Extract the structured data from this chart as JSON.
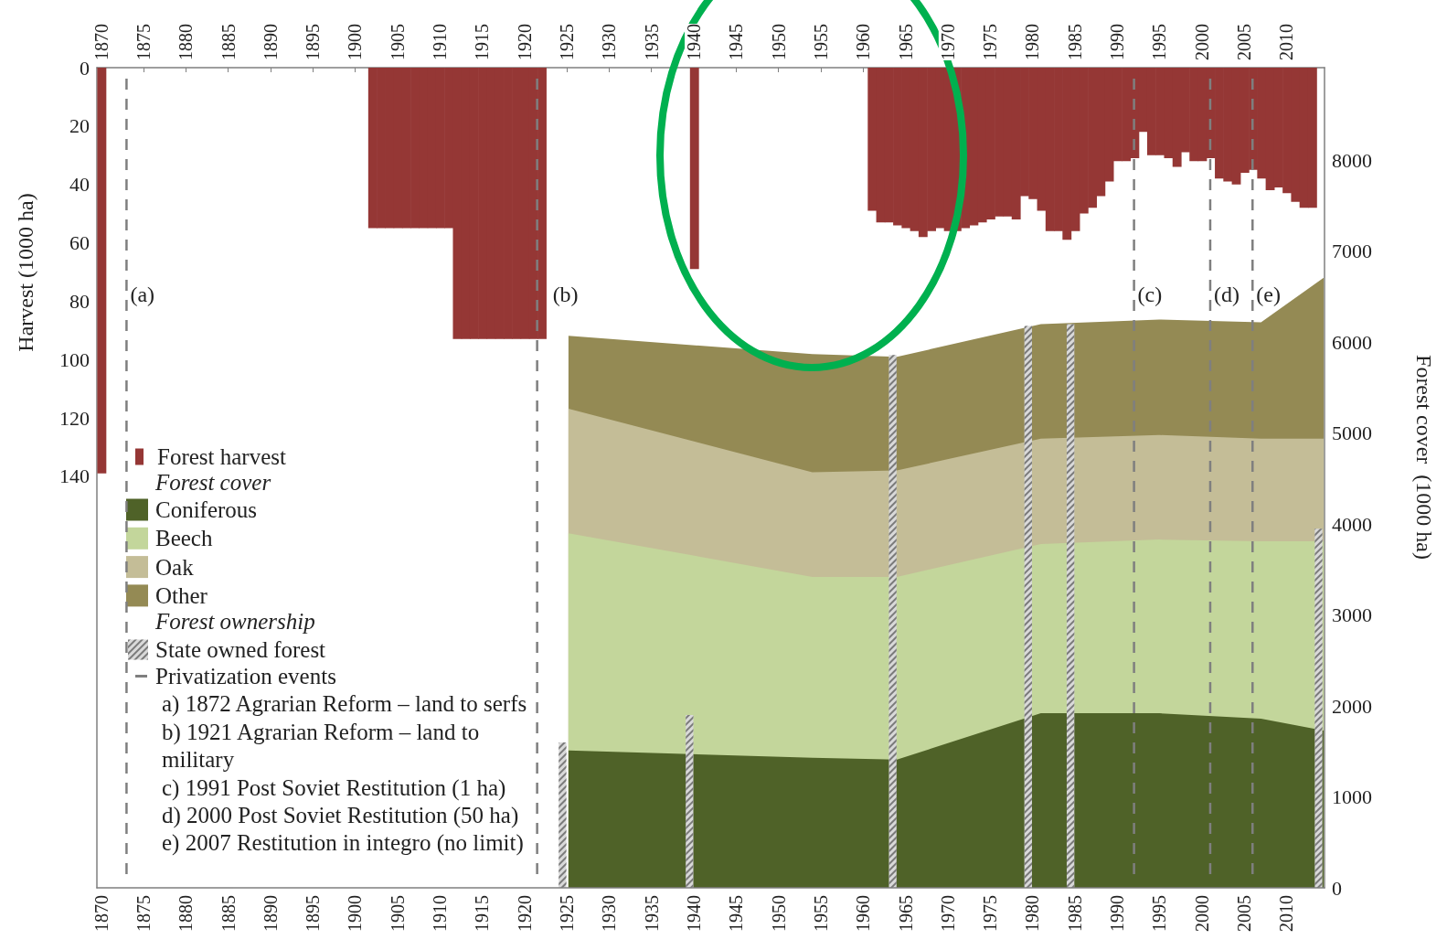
{
  "chart_data": {
    "type": "area",
    "ylabel": "Harvest (1000 ha)",
    "y2label": "Forest cover  (1000 ha)",
    "xlim": [
      1869.5,
      2014.5
    ],
    "xticks": [
      1870,
      1875,
      1880,
      1885,
      1890,
      1895,
      1900,
      1905,
      1910,
      1915,
      1920,
      1925,
      1930,
      1935,
      1940,
      1945,
      1950,
      1955,
      1960,
      1965,
      1970,
      1975,
      1980,
      1985,
      1990,
      1995,
      2000,
      2005,
      2010
    ],
    "x2lim": [
      1869.5,
      2014.5
    ],
    "x2ticks": [
      1870,
      1875,
      1880,
      1885,
      1890,
      1895,
      1900,
      1905,
      1910,
      1915,
      1920,
      1925,
      1930,
      1935,
      1940,
      1945,
      1950,
      1955,
      1960,
      1965,
      1970,
      1975,
      1980,
      1985,
      1990,
      1995,
      2000,
      2005,
      2010
    ],
    "ylim": [
      281,
      0
    ],
    "yticks": [
      0,
      20,
      40,
      60,
      80,
      100,
      120,
      140
    ],
    "y2lim": [
      0,
      9020
    ],
    "y2ticks": [
      0,
      1000,
      2000,
      3000,
      4000,
      5000,
      6000,
      7000,
      8000
    ],
    "stacked": true,
    "grid": false,
    "legend": "bottom left",
    "marker": "none",
    "series": [
      {
        "name": "Forest harvest",
        "type": "bar",
        "color": "#953735",
        "x": [
          1870,
          1902,
          1903,
          1904,
          1905,
          1906,
          1907,
          1908,
          1909,
          1910,
          1911,
          1912,
          1913,
          1914,
          1915,
          1916,
          1917,
          1918,
          1919,
          1920,
          1921,
          1922,
          1940,
          1961,
          1962,
          1963,
          1964,
          1965,
          1966,
          1967,
          1968,
          1969,
          1970,
          1971,
          1972,
          1973,
          1974,
          1975,
          1976,
          1977,
          1978,
          1979,
          1980,
          1981,
          1982,
          1983,
          1984,
          1985,
          1986,
          1987,
          1988,
          1989,
          1990,
          1991,
          1992,
          1993,
          1994,
          1995,
          1996,
          1997,
          1998,
          1999,
          2000,
          2001,
          2002,
          2003,
          2004,
          2005,
          2006,
          2007,
          2008,
          2009,
          2010,
          2011,
          2012,
          2013
        ],
        "values": [
          139,
          55,
          55,
          55,
          55,
          55,
          55,
          55,
          55,
          55,
          55,
          93,
          93,
          93,
          93,
          93,
          93,
          93,
          93,
          93,
          93,
          93,
          69,
          49,
          53,
          53,
          54,
          55,
          56,
          58,
          56,
          55,
          56,
          56,
          55,
          54,
          53,
          52,
          51,
          51,
          52,
          44,
          45,
          49,
          56,
          56,
          59,
          56,
          50,
          48,
          44,
          39,
          32,
          32,
          31,
          22,
          30,
          30,
          31,
          34,
          29,
          32,
          32,
          31,
          38,
          39,
          40,
          36,
          35,
          38,
          42,
          41,
          43,
          46,
          48,
          48
        ]
      },
      {
        "name": "Coniferous",
        "axis": "y2",
        "color": "#4f6228",
        "x": [
          1925.2,
          1954,
          1964,
          1981,
          1995,
          2007,
          2014.4
        ],
        "values": [
          1510,
          1430,
          1410,
          1920,
          1920,
          1860,
          1730
        ]
      },
      {
        "name": "Beech",
        "axis": "y2",
        "color": "#c3d69b",
        "x": [
          1925.2,
          1954,
          1964,
          1981,
          1995,
          2007,
          2014.4
        ],
        "values": [
          2390,
          1990,
          2010,
          1860,
          1910,
          1950,
          2080
        ]
      },
      {
        "name": "Oak",
        "axis": "y2",
        "color": "#c4bd97",
        "x": [
          1925.2,
          1954,
          1964,
          1981,
          1995,
          2007,
          2014.4
        ],
        "values": [
          1370,
          1150,
          1170,
          1160,
          1150,
          1130,
          1130
        ]
      },
      {
        "name": "Other",
        "axis": "y2",
        "color": "#948a54",
        "x": [
          1925.2,
          1954,
          1964,
          1981,
          1995,
          2007,
          2014.4
        ],
        "values": [
          800,
          1300,
          1250,
          1260,
          1270,
          1280,
          1770
        ]
      },
      {
        "name": "State owned forest",
        "type": "bar",
        "axis": "y2",
        "color": "#d9d9d9",
        "x": [
          1924.5,
          1939.5,
          1963.5,
          1979.5,
          1984.5,
          2013.8
        ],
        "values": [
          1600,
          1900,
          5860,
          6180,
          6200,
          3950
        ]
      }
    ],
    "ref_lines": [
      {
        "axis": "x",
        "value": 1873,
        "label": "(a)",
        "color": "#7f7f7f",
        "line_style": "dashed"
      },
      {
        "axis": "x",
        "value": 1921.5,
        "label": "(b)",
        "color": "#7f7f7f",
        "line_style": "dashed"
      },
      {
        "axis": "x",
        "value": 1992,
        "label": "(c)",
        "color": "#7f7f7f",
        "line_style": "dashed"
      },
      {
        "axis": "x",
        "value": 2001,
        "label": "(d)",
        "color": "#7f7f7f",
        "line_style": "dashed"
      },
      {
        "axis": "x",
        "value": 2006,
        "label": "(e)",
        "color": "#7f7f7f",
        "line_style": "dashed"
      }
    ],
    "annotations": [
      "Forest cover",
      "Forest ownership",
      "Privatization events",
      "a) 1872 Agrarian Reform – land to serfs",
      "b) 1921 Agrarian Reform – land to military",
      "c) 1991 Post Soviet Restitution (1 ha)",
      "d) 2000 Post Soviet Restitution (50 ha)",
      "e) 2007 Restitution in integro (no limit)"
    ]
  }
}
